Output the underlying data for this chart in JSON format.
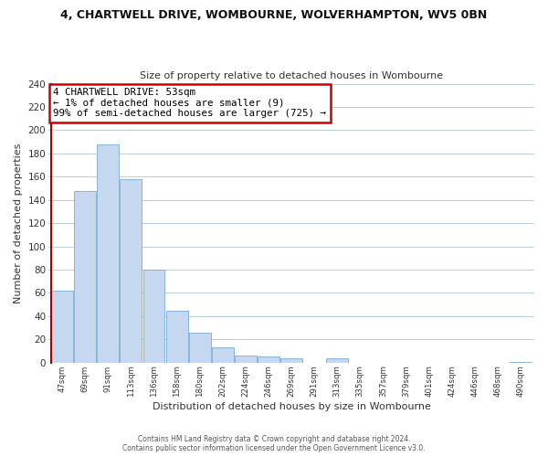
{
  "title": "4, CHARTWELL DRIVE, WOMBOURNE, WOLVERHAMPTON, WV5 0BN",
  "subtitle": "Size of property relative to detached houses in Wombourne",
  "xlabel": "Distribution of detached houses by size in Wombourne",
  "ylabel": "Number of detached properties",
  "footer_line1": "Contains HM Land Registry data © Crown copyright and database right 2024.",
  "footer_line2": "Contains public sector information licensed under the Open Government Licence v3.0.",
  "bin_labels": [
    "47sqm",
    "69sqm",
    "91sqm",
    "113sqm",
    "136sqm",
    "158sqm",
    "180sqm",
    "202sqm",
    "224sqm",
    "246sqm",
    "269sqm",
    "291sqm",
    "313sqm",
    "335sqm",
    "357sqm",
    "379sqm",
    "401sqm",
    "424sqm",
    "446sqm",
    "468sqm",
    "490sqm"
  ],
  "bar_values": [
    62,
    148,
    188,
    158,
    80,
    45,
    26,
    13,
    6,
    5,
    4,
    0,
    4,
    0,
    0,
    0,
    0,
    0,
    0,
    0,
    1
  ],
  "bar_color": "#c5d8f0",
  "bar_edge_color": "#7aadd4",
  "highlight_color": "#aa0000",
  "annotation_title": "4 CHARTWELL DRIVE: 53sqm",
  "annotation_line1": "← 1% of detached houses are smaller (9)",
  "annotation_line2": "99% of semi-detached houses are larger (725) →",
  "annotation_box_color": "#ffffff",
  "annotation_box_edge_color": "#cc0000",
  "ylim": [
    0,
    240
  ],
  "yticks": [
    0,
    20,
    40,
    60,
    80,
    100,
    120,
    140,
    160,
    180,
    200,
    220,
    240
  ],
  "background_color": "#ffffff",
  "grid_color": "#b8cfe0"
}
